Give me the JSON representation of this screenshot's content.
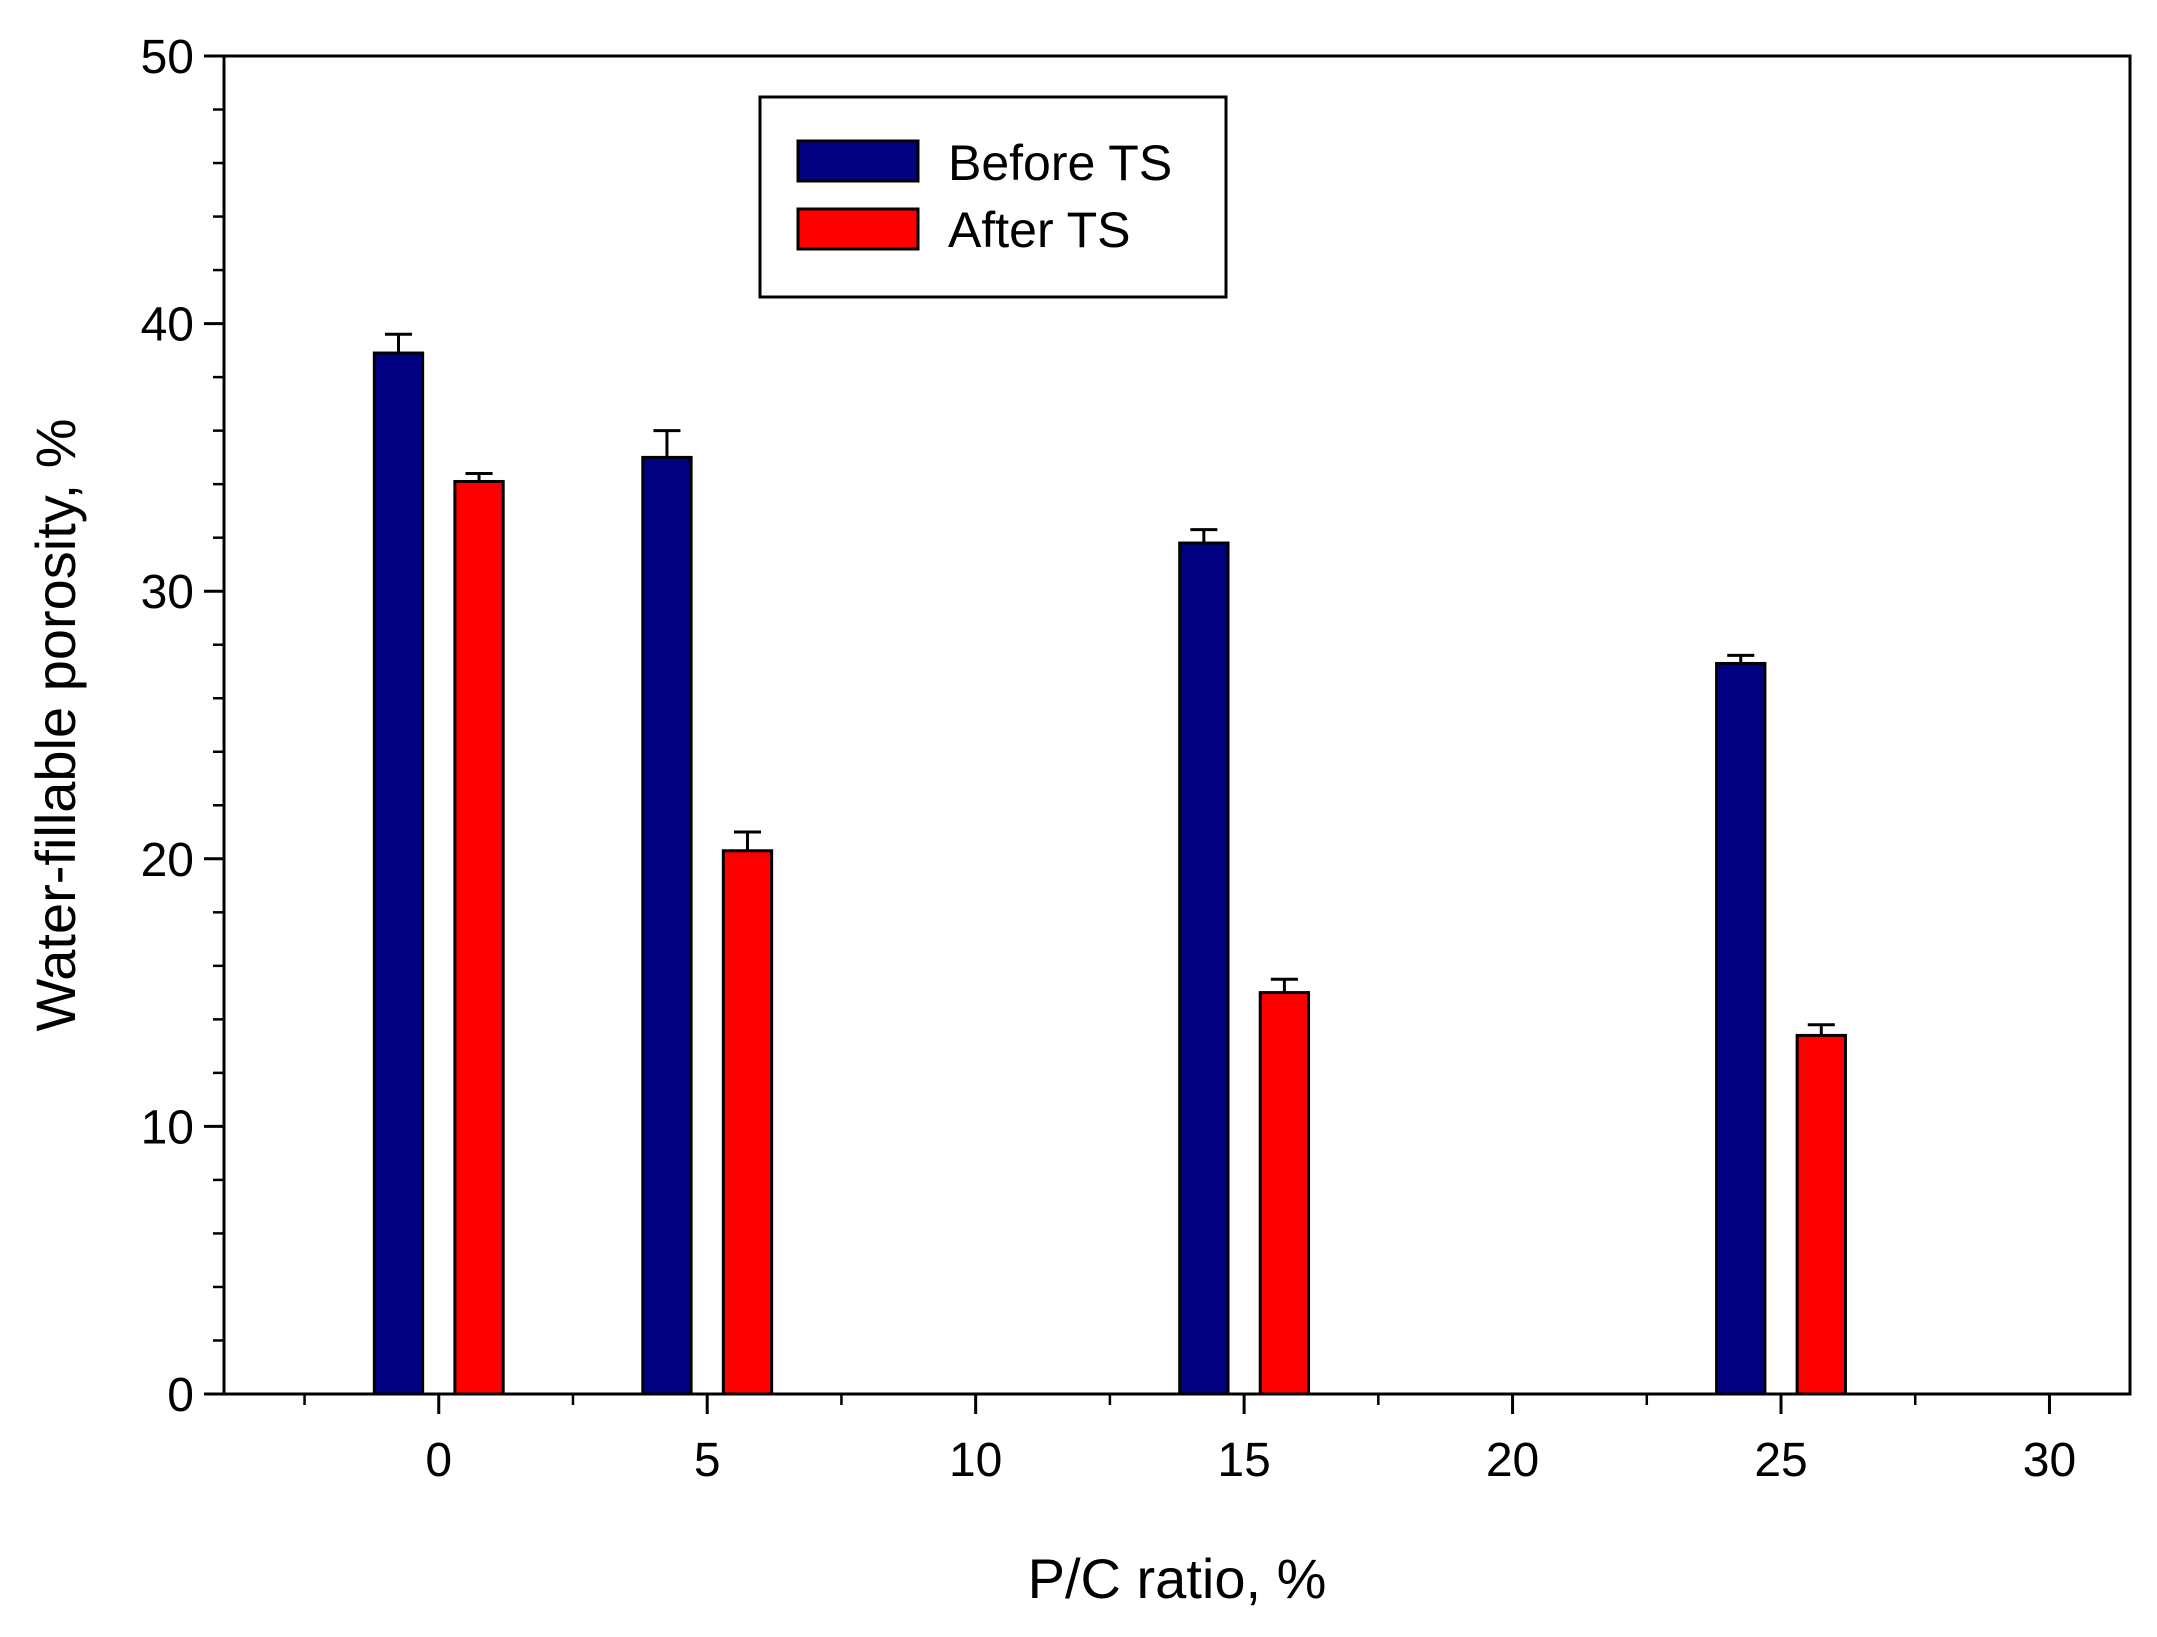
{
  "chart_data": {
    "type": "bar",
    "title": "",
    "xlabel": "P/C ratio, %",
    "ylabel": "Water-fillable porosity, %",
    "xlim": [
      -4,
      31.5
    ],
    "ylim": [
      0,
      50
    ],
    "x_ticks": [
      0,
      5,
      10,
      15,
      20,
      25,
      30
    ],
    "y_ticks": [
      0,
      10,
      20,
      30,
      40,
      50
    ],
    "x_tick_labels": [
      "0",
      "5",
      "10",
      "15",
      "20",
      "25",
      "30"
    ],
    "y_tick_labels": [
      "0",
      "10",
      "20",
      "30",
      "40",
      "50"
    ],
    "categories": [
      0,
      5,
      15,
      25
    ],
    "series": [
      {
        "name": "Before TS",
        "color": "#000080",
        "offset": -0.75,
        "values": [
          38.9,
          35.0,
          31.8,
          27.3
        ],
        "errors": [
          0.7,
          1.0,
          0.5,
          0.3
        ]
      },
      {
        "name": "After TS",
        "color": "#ff0000",
        "offset": 0.75,
        "values": [
          34.1,
          20.3,
          15.0,
          13.4
        ],
        "errors": [
          0.3,
          0.7,
          0.5,
          0.4
        ]
      }
    ],
    "bar_width": 0.9,
    "grid": false,
    "legend": {
      "position": "top-left",
      "entries": [
        "Before TS",
        "After TS"
      ]
    }
  }
}
